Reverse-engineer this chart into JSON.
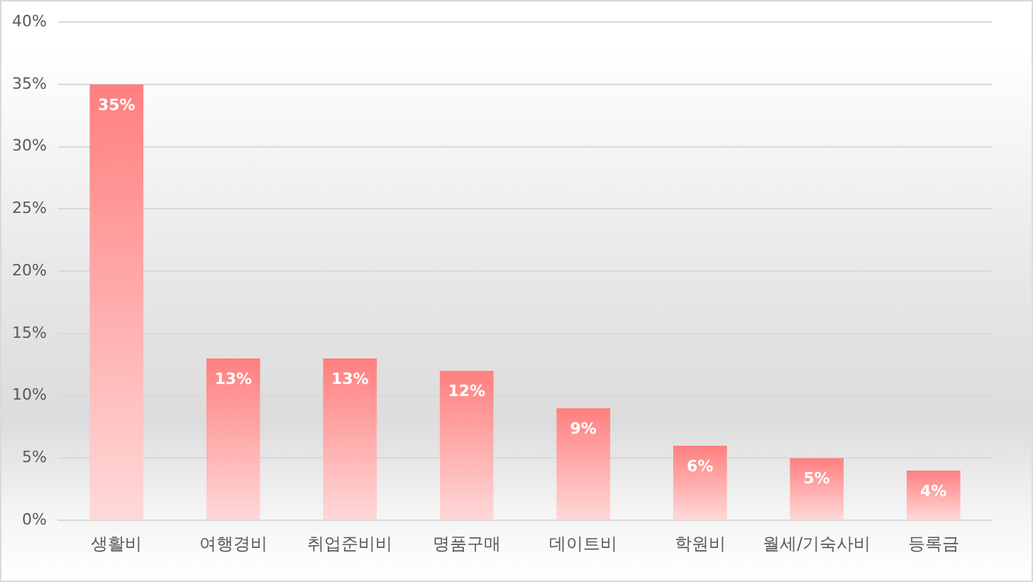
{
  "chart_data": {
    "type": "bar",
    "categories": [
      "생활비",
      "여행경비",
      "취업준비비",
      "명품구매",
      "데이트비",
      "학원비",
      "월세/기숙사비",
      "등록금"
    ],
    "values": [
      35,
      13,
      13,
      12,
      9,
      6,
      5,
      4
    ],
    "value_labels": [
      "35%",
      "13%",
      "13%",
      "12%",
      "9%",
      "6%",
      "5%",
      "4%"
    ],
    "color": "#ff7f7f",
    "ylim": [
      0,
      40
    ],
    "yticks": [
      {
        "value": 0,
        "label": "0%"
      },
      {
        "value": 5,
        "label": "5%"
      },
      {
        "value": 10,
        "label": "10%"
      },
      {
        "value": 15,
        "label": "15%"
      },
      {
        "value": 20,
        "label": "20%"
      },
      {
        "value": 25,
        "label": "25%"
      },
      {
        "value": 30,
        "label": "30%"
      },
      {
        "value": 35,
        "label": "35%"
      },
      {
        "value": 40,
        "label": "40%"
      }
    ],
    "grid": "y"
  }
}
